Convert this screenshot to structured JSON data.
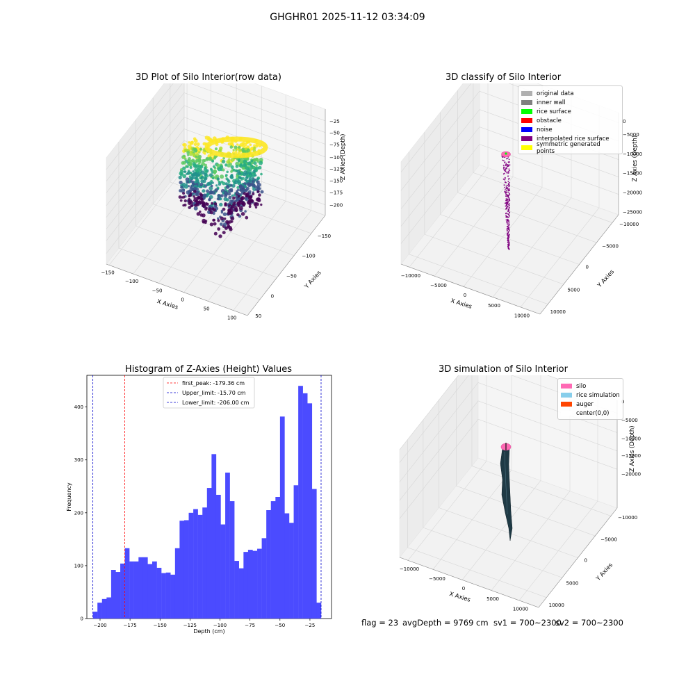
{
  "figure": {
    "suptitle": "GHGHR01 2025-11-12 03:34:09"
  },
  "panels": {
    "tl": {
      "title": "3D Plot of Silo Interior(row data)",
      "xlabel": "X Axies",
      "ylabel": "Y Axies",
      "zlabel": "Z Axies (Depth)",
      "xticks": [
        "−150",
        "−100",
        "−50",
        "0",
        "50",
        "100"
      ],
      "yticks": [
        "50",
        "0",
        "−50",
        "−100",
        "−150"
      ],
      "zticks": [
        "−25",
        "−50",
        "−75",
        "−100",
        "−125",
        "−150",
        "−175",
        "−200"
      ]
    },
    "tr": {
      "title": "3D classify of Silo Interior",
      "xlabel": "X Axies",
      "ylabel": "Y Axies",
      "zlabel": "Z Axies (Depth)",
      "xticks": [
        "−10000",
        "−5000",
        "0",
        "5000",
        "10000"
      ],
      "yticks": [
        "10000",
        "5000",
        "0",
        "−5000",
        "−10000"
      ],
      "zticks": [
        "0",
        "−5000",
        "−10000",
        "−15000",
        "−20000",
        "−25000"
      ],
      "legend": [
        {
          "label": "original data",
          "color": "#b0b0b0"
        },
        {
          "label": "inner wall",
          "color": "#808080"
        },
        {
          "label": "rice surface",
          "color": "#00ff00"
        },
        {
          "label": "obstacle",
          "color": "#ff0000"
        },
        {
          "label": "noise",
          "color": "#0000ff"
        },
        {
          "label": "interpolated rice surface",
          "color": "#800080"
        },
        {
          "label": "symmetric generated points",
          "color": "#ffff00"
        }
      ]
    },
    "bl": {
      "title": "Histogram of Z-Axies (Height) Values",
      "legend": [
        {
          "label": "first_peak: -179.36 cm",
          "color": "#ff0000"
        },
        {
          "label": "Upper_limit: -15.70 cm",
          "color": "#0000cc"
        },
        {
          "label": "Lower_limit: -206.00 cm",
          "color": "#0000cc"
        }
      ]
    },
    "br": {
      "title": "3D simulation of Silo Interior",
      "xlabel": "X Axies",
      "ylabel": "Y Axies",
      "zlabel": "Z Axies (Depth)",
      "xticks": [
        "−10000",
        "−5000",
        "0",
        "5000",
        "10000"
      ],
      "yticks": [
        "10000",
        "5000",
        "0",
        "−5000",
        "−10000"
      ],
      "zticks": [
        "0",
        "−5000",
        "−10000",
        "−15000",
        "−20000"
      ],
      "legend": [
        {
          "label": "silo",
          "color": "#ff69b4"
        },
        {
          "label": "rice simulation",
          "color": "#87ceeb"
        },
        {
          "label": "auger",
          "color": "#ff4500"
        },
        {
          "label": "center(0,0)",
          "color": "#ffffff"
        }
      ]
    }
  },
  "footer": {
    "flag": "flag = 23",
    "avg": "avgDepth = 9769 cm",
    "sv1": "sv1 = 700~2300",
    "sv2": "sv2 = 700~2300"
  },
  "chart_data": [
    {
      "type": "scatter",
      "title": "3D Plot of Silo Interior(row data)",
      "xlabel": "X Axies",
      "ylabel": "Y Axies",
      "zlabel": "Z Axies (Depth)",
      "xlim": [
        -160,
        120
      ],
      "ylim": [
        -160,
        70
      ],
      "zlim": [
        -210,
        -15
      ]
    },
    {
      "type": "scatter",
      "title": "3D classify of Silo Interior",
      "xlabel": "X Axies",
      "ylabel": "Y Axies",
      "zlabel": "Z Axies (Depth)",
      "xlim": [
        -12000,
        12000
      ],
      "ylim": [
        -12000,
        12000
      ],
      "zlim": [
        -26000,
        1000
      ],
      "series": [
        {
          "name": "original data"
        },
        {
          "name": "inner wall"
        },
        {
          "name": "rice surface"
        },
        {
          "name": "obstacle"
        },
        {
          "name": "noise"
        },
        {
          "name": "interpolated rice surface"
        },
        {
          "name": "symmetric generated points"
        }
      ]
    },
    {
      "type": "bar",
      "title": "Histogram of Z-Axies (Height) Values",
      "xlabel": "Depth (cm)",
      "ylabel": "Frequency",
      "xlim": [
        -211,
        -7
      ],
      "ylim": [
        0,
        460
      ],
      "xticks": [
        -200,
        -175,
        -150,
        -125,
        -100,
        -75,
        -50,
        -25
      ],
      "yticks": [
        0,
        100,
        200,
        300,
        400
      ],
      "bin_range": [
        -206.0,
        -15.7
      ],
      "bar_color": "#4b4bff",
      "values": [
        13,
        30,
        37,
        40,
        92,
        88,
        104,
        133,
        108,
        108,
        116,
        116,
        103,
        108,
        96,
        86,
        87,
        83,
        133,
        185,
        186,
        200,
        207,
        196,
        210,
        247,
        311,
        234,
        178,
        276,
        222,
        109,
        95,
        126,
        130,
        128,
        132,
        152,
        205,
        222,
        230,
        382,
        199,
        181,
        252,
        440,
        426,
        407,
        245,
        30
      ],
      "lines": [
        {
          "name": "first_peak",
          "x": -179.36,
          "color": "#ff0000"
        },
        {
          "name": "Upper_limit",
          "x": -15.7,
          "color": "#0000cc"
        },
        {
          "name": "Lower_limit",
          "x": -206.0,
          "color": "#0000cc"
        }
      ],
      "grid": false,
      "legend_position": "top-center"
    },
    {
      "type": "area",
      "title": "3D simulation of Silo Interior",
      "xlabel": "X Axies",
      "ylabel": "Y Axies",
      "zlabel": "Z Axies (Depth)",
      "xlim": [
        -12000,
        12000
      ],
      "ylim": [
        -12000,
        12000
      ],
      "zlim": [
        -23000,
        1000
      ],
      "series": [
        {
          "name": "silo"
        },
        {
          "name": "rice simulation"
        },
        {
          "name": "auger"
        },
        {
          "name": "center(0,0)"
        }
      ]
    }
  ]
}
